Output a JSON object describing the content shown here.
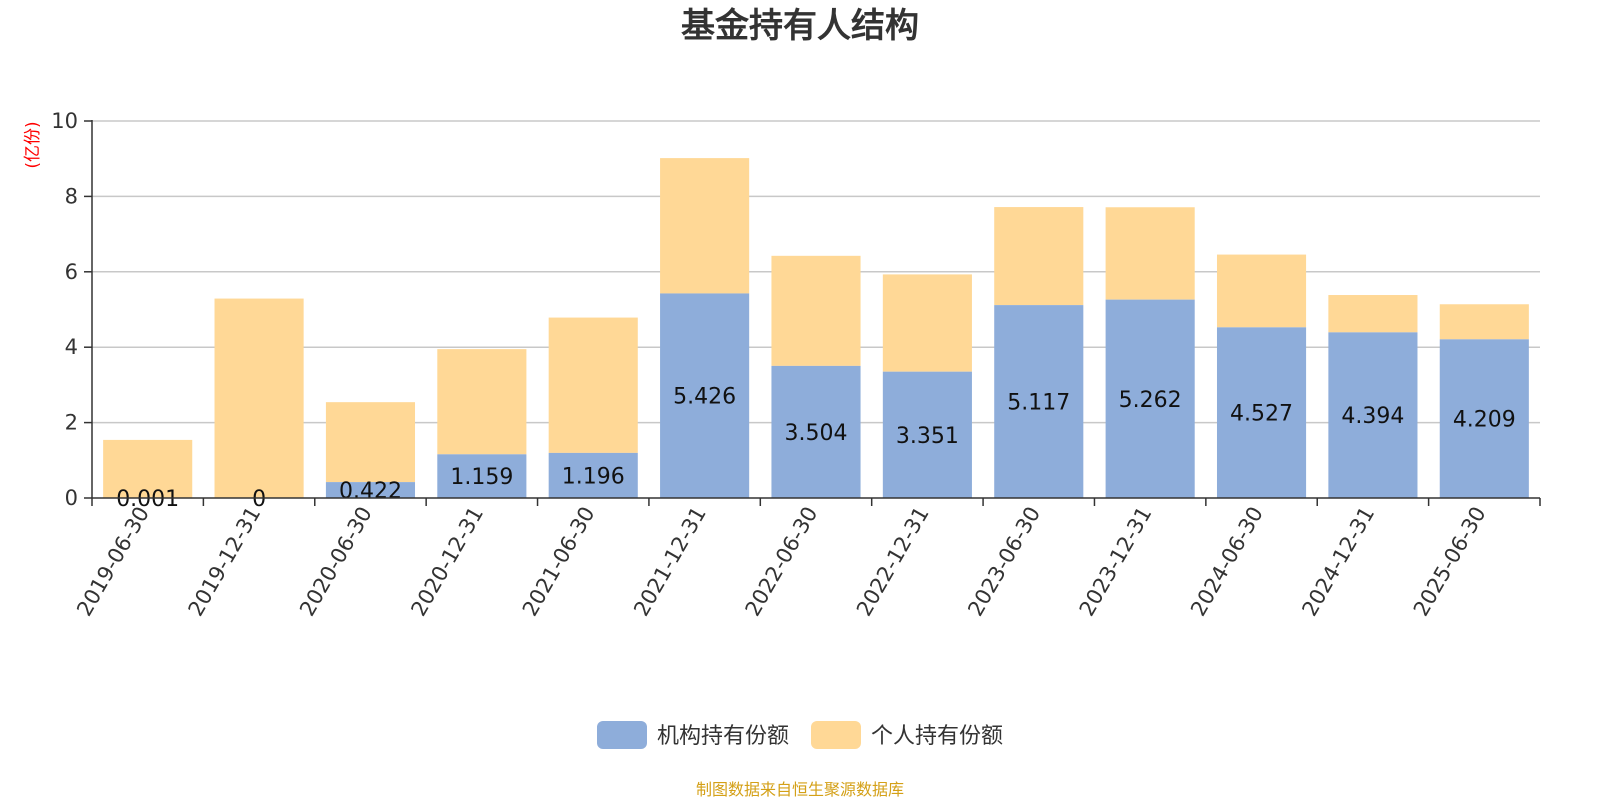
{
  "chart_data": {
    "type": "bar",
    "stacked": true,
    "title": "基金持有人结构",
    "unit_label": "(亿份)",
    "ylim": [
      0,
      10
    ],
    "y_ticks": [
      "0",
      "2",
      "4",
      "6",
      "8",
      "10"
    ],
    "grid": true,
    "legend_position": "bottom",
    "categories": [
      "2019-06-30",
      "2019-12-31",
      "2020-06-30",
      "2020-12-31",
      "2021-06-30",
      "2021-12-31",
      "2022-06-30",
      "2022-12-31",
      "2023-06-30",
      "2023-12-31",
      "2024-06-30",
      "2024-12-31",
      "2025-06-30"
    ],
    "series": [
      {
        "name": "机构持有份额",
        "color": "#8eadda",
        "values": [
          0.001,
          0,
          0.422,
          1.159,
          1.196,
          5.426,
          3.504,
          3.351,
          5.117,
          5.262,
          4.527,
          4.394,
          4.209
        ],
        "labels": [
          "0.001",
          "0",
          "0.422",
          "1.159",
          "1.196",
          "5.426",
          "3.504",
          "3.351",
          "5.117",
          "5.262",
          "4.527",
          "4.394",
          "4.209"
        ]
      },
      {
        "name": "个人持有份额",
        "color": "#ffd896",
        "values": [
          1.54,
          5.29,
          2.12,
          2.79,
          3.59,
          3.59,
          2.92,
          2.58,
          2.6,
          2.45,
          1.93,
          0.99,
          0.93
        ]
      }
    ],
    "source": "制图数据来自恒生聚源数据库",
    "source_color": "#d4a017",
    "unit_color": "#ff0000"
  }
}
